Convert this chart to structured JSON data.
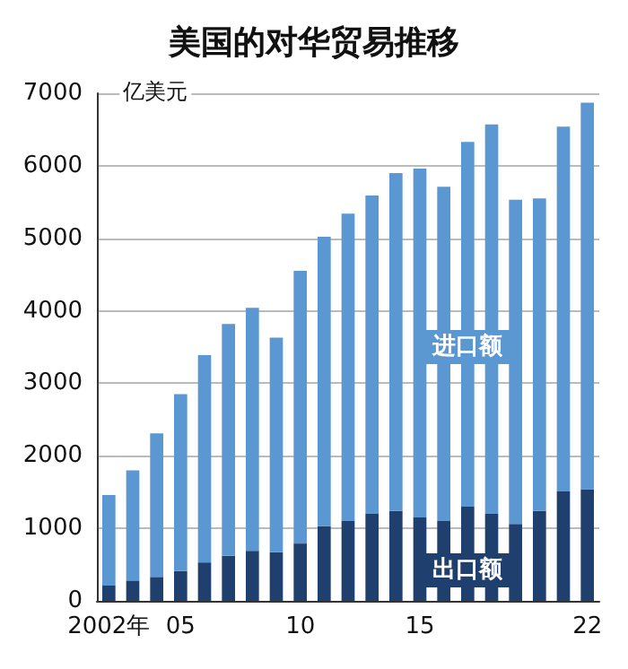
{
  "chart_data": {
    "type": "bar",
    "title": "美国的对华贸易推移",
    "ylabel": "亿美元",
    "categories": [
      "2002年",
      null,
      null,
      "05",
      null,
      null,
      null,
      null,
      "10",
      null,
      null,
      null,
      null,
      "15",
      null,
      null,
      null,
      null,
      null,
      null,
      "22"
    ],
    "stacked": true,
    "series": [
      {
        "name": "出口额",
        "color": "#1f3f6e",
        "values": [
          210,
          280,
          330,
          410,
          530,
          620,
          690,
          670,
          790,
          1030,
          1100,
          1200,
          1240,
          1150,
          1100,
          1300,
          1200,
          1060,
          1240,
          1510,
          1540
        ]
      },
      {
        "name": "进口额",
        "color": "#5b97d0",
        "values": [
          1250,
          1520,
          1980,
          2440,
          2860,
          3200,
          3350,
          2960,
          3760,
          3990,
          4240,
          4390,
          4660,
          4810,
          4610,
          5030,
          5370,
          4470,
          4310,
          5030,
          5330
        ]
      }
    ],
    "ylim": [
      0,
      7000
    ],
    "yticks": [
      0,
      1000,
      2000,
      3000,
      4000,
      5000,
      6000,
      7000
    ],
    "grid": "y",
    "legend": false
  }
}
